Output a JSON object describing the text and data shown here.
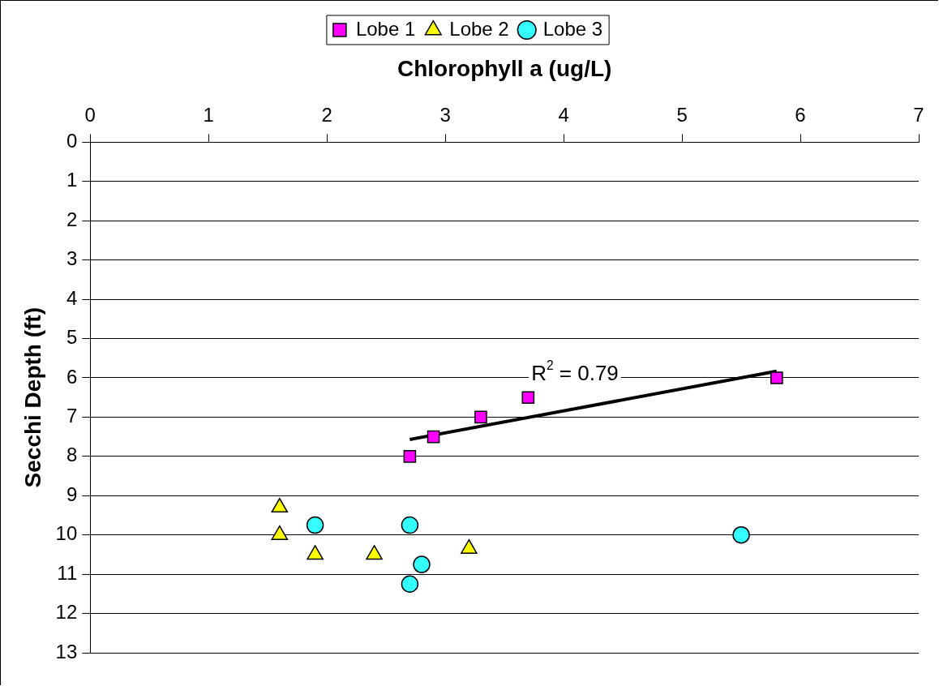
{
  "chart_data": {
    "type": "scatter",
    "xlabel": "Chlorophyll a (ug/L)",
    "ylabel": "Secchi Depth (ft)",
    "xlim": [
      0,
      7
    ],
    "xticks": [
      0,
      1,
      2,
      3,
      4,
      5,
      6,
      7
    ],
    "ylim": [
      13,
      0
    ],
    "yticks": [
      0,
      1,
      2,
      3,
      4,
      5,
      6,
      7,
      8,
      9,
      10,
      11,
      12,
      13
    ],
    "grid": "y",
    "legend": "top",
    "series": [
      {
        "name": "Lobe 1",
        "color": "#ff00ff",
        "marker": "square",
        "x": [
          2.7,
          2.9,
          3.3,
          3.7,
          5.8
        ],
        "values": [
          8.0,
          7.5,
          7.0,
          6.5,
          6.0
        ]
      },
      {
        "name": "Lobe 2",
        "color": "#ffff00",
        "marker": "triangle",
        "x": [
          1.6,
          1.6,
          1.9,
          2.4,
          3.2
        ],
        "values": [
          9.3,
          10.0,
          10.5,
          10.5,
          10.35
        ]
      },
      {
        "name": "Lobe 3",
        "color": "#33ffff",
        "marker": "circle",
        "x": [
          1.9,
          2.7,
          2.8,
          2.7,
          5.5
        ],
        "values": [
          9.75,
          9.75,
          10.75,
          11.25,
          10.0
        ]
      },
      {
        "type": "line",
        "color": "#000000",
        "marker": "none",
        "x": [
          2.7,
          5.8
        ],
        "values": [
          7.57,
          5.83
        ]
      }
    ],
    "annotations": [
      "R$^{2}$ = 0.79"
    ]
  }
}
